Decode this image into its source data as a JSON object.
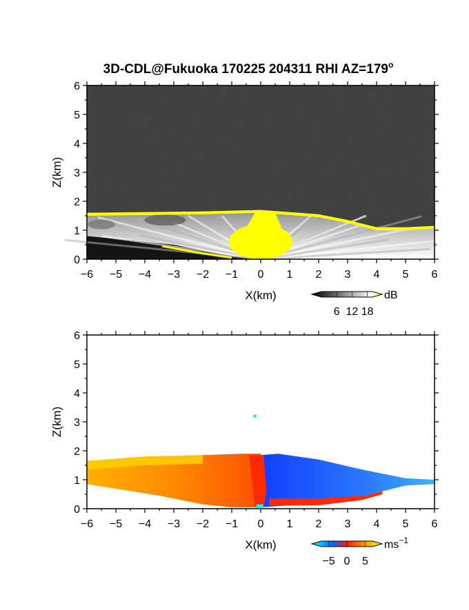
{
  "title": "3D-CDL@Fukuoka 170225 204311 RHI AZ=179",
  "title_degree": "o",
  "chart_data": [
    {
      "type": "heatmap",
      "name": "backscatter",
      "xlabel": "X(km)",
      "ylabel": "Z(km)",
      "xlim": [
        -6,
        6
      ],
      "ylim": [
        0,
        6
      ],
      "xticks": [
        -6,
        -5,
        -4,
        -3,
        -2,
        -1,
        0,
        1,
        2,
        3,
        4,
        5,
        6
      ],
      "yticks": [
        0,
        1,
        2,
        3,
        4,
        5,
        6
      ],
      "colorbar": {
        "label": "dB",
        "ticks": [
          6,
          12,
          18
        ],
        "range": [
          0,
          20
        ],
        "colors": [
          "#000000",
          "#ffffff",
          "#ffff00"
        ]
      },
      "features": {
        "background": "grayscale noise",
        "layer_top_km": [
          [
            -6,
            1.6
          ],
          [
            -2,
            1.65
          ],
          [
            0,
            1.7
          ],
          [
            2,
            1.55
          ],
          [
            3,
            1.35
          ],
          [
            4,
            1.1
          ],
          [
            5,
            1.1
          ],
          [
            6,
            1.15
          ]
        ],
        "ground_clip_km": [
          [
            -6,
            0.8
          ],
          [
            -3,
            0.5
          ],
          [
            -1,
            0.1
          ],
          [
            0,
            0.0
          ]
        ],
        "high_return_core": {
          "x_center": 0,
          "z_top": 1.3,
          "color": "#ffff00"
        }
      }
    },
    {
      "type": "heatmap",
      "name": "doppler_velocity",
      "xlabel": "X(km)",
      "ylabel": "Z(km)",
      "xlim": [
        -6,
        6
      ],
      "ylim": [
        0,
        6
      ],
      "xticks": [
        -6,
        -5,
        -4,
        -3,
        -2,
        -1,
        0,
        1,
        2,
        3,
        4,
        5,
        6
      ],
      "yticks": [
        0,
        1,
        2,
        3,
        4,
        5,
        6
      ],
      "colorbar": {
        "label": "ms",
        "label_exp": "−1",
        "ticks": [
          "−5",
          "0",
          "5"
        ],
        "tick_values": [
          -5,
          0,
          5
        ],
        "range": [
          -7,
          7
        ],
        "colors": [
          "#00ffff",
          "#0064ff",
          "#ff1e00",
          "#ff9600",
          "#ffff00"
        ]
      },
      "features": {
        "negative_region_x_km": [
          0,
          6
        ],
        "positive_region_x_km": [
          -6,
          0
        ],
        "isolated_point": {
          "x": -0.2,
          "z": 3.2
        }
      }
    }
  ]
}
